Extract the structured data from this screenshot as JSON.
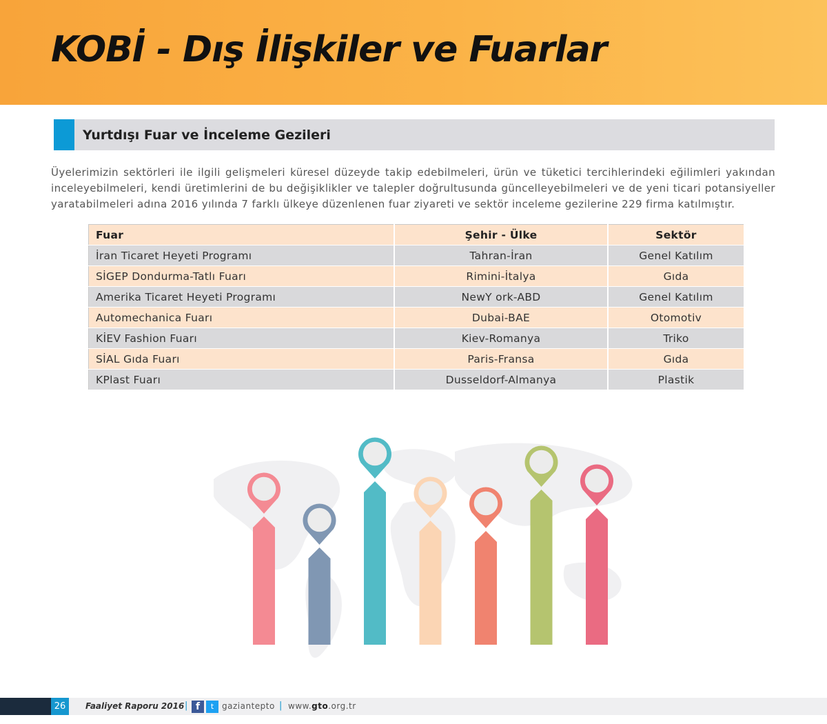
{
  "header": {
    "title": "KOBİ - Dış İlişkiler ve Fuarlar"
  },
  "section": {
    "title": "Yurtdışı Fuar ve İnceleme Gezileri"
  },
  "intro": "Üyelerimizin sektörleri ile ilgili gelişmeleri küresel düzeyde takip edebilmeleri, ürün ve tüketici tercihlerindeki eğilimleri yakından inceleyebilmeleri, kendi üretimlerini de bu değişiklikler ve talepler doğrultusunda güncelleyebilmeleri ve de yeni ticari potansiyeller yaratabilmeleri adına 2016 yılında 7 farklı ülkeye düzenlenen fuar ziyareti ve sektör inceleme gezilerine 229 firma katılmıştır.",
  "table": {
    "headers": [
      "Fuar",
      "Şehir - Ülke",
      "Sektör"
    ],
    "rows": [
      [
        "İran Ticaret Heyeti Programı",
        "Tahran-İran",
        "Genel Katılım"
      ],
      [
        "SİGEP Dondurma-Tatlı Fuarı",
        "Rimini-İtalya",
        "Gıda"
      ],
      [
        "Amerika Ticaret Heyeti Programı",
        "NewY ork-ABD",
        "Genel Katılım"
      ],
      [
        "Automechanica Fuarı",
        "Dubai-BAE",
        "Otomotiv"
      ],
      [
        "KİEV Fashion Fuarı",
        "Kiev-Romanya",
        "Triko"
      ],
      [
        "SİAL Gıda Fuarı",
        "Paris-Fransa",
        "Gıda"
      ],
      [
        "KPlast Fuarı",
        "Dusseldorf-Almanya",
        "Plastik"
      ]
    ]
  },
  "infographic": {
    "pins": [
      {
        "color": "#f48a93",
        "level": 0.62
      },
      {
        "color": "#8097b3",
        "level": 0.47
      },
      {
        "color": "#52bbc6",
        "level": 0.79
      },
      {
        "color": "#fbd5b4",
        "level": 0.6
      },
      {
        "color": "#f0836f",
        "level": 0.55
      },
      {
        "color": "#b5c46f",
        "level": 0.75
      },
      {
        "color": "#ea6b82",
        "level": 0.66
      }
    ]
  },
  "footer": {
    "page_number": "26",
    "report": "Faaliyet Raporu 2016",
    "separator": "|",
    "facebook_glyph": "f",
    "twitter_glyph": "t",
    "handle": "gaziantepto",
    "web_prefix": "www.",
    "web_domain": "gto",
    "web_suffix": ".org.tr"
  }
}
